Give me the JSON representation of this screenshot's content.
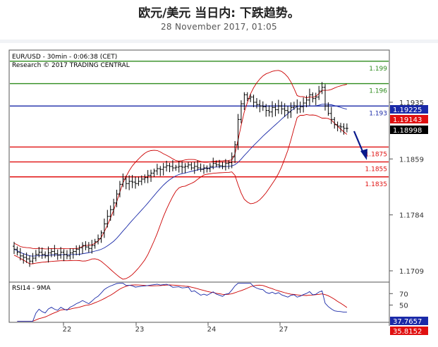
{
  "header": {
    "title": "欧元/美元 当日内: 下跌趋势。",
    "date": "28 November 2017, 01:05"
  },
  "chart_info": {
    "symbol_line": "EUR/USD - 30min - 0:06:38 (CET)",
    "research_line": "Research © 2017 TRADING CENTRAL"
  },
  "colors": {
    "green_level": "#2e8b1e",
    "blue_level": "#1a2aa8",
    "red_level": "#e01010",
    "candles": "#000000",
    "bollinger": "#cc0000",
    "moving_average": "#1a2aa8",
    "arrow": "#0a1a8c"
  },
  "chart_data": [
    {
      "type": "line",
      "title": "",
      "x_tick_labels": [
        "22",
        "23",
        "24",
        "27"
      ],
      "y_tick_labels": [
        "1.1935",
        "1.1859",
        "1.1784",
        "1.1709"
      ],
      "ylim": [
        1.1655,
        1.2005
      ],
      "levels": [
        {
          "label": "1.199",
          "value": 1.199,
          "color": "green"
        },
        {
          "label": "1.196",
          "value": 1.196,
          "color": "green"
        },
        {
          "label": "1.193",
          "value": 1.193,
          "color": "blue"
        },
        {
          "label": "1.1875",
          "value": 1.1875,
          "color": "red"
        },
        {
          "label": "1.1855",
          "value": 1.1855,
          "color": "red"
        },
        {
          "label": "1.1835",
          "value": 1.1835,
          "color": "red"
        }
      ],
      "price_boxes": [
        {
          "label": "1.19225",
          "value": 1.19225,
          "bg": "#1a2aa8"
        },
        {
          "label": "1.19143",
          "value": 1.19143,
          "bg": "#e01010"
        },
        {
          "label": "1.18998",
          "value": 1.18998,
          "bg": "#000000"
        }
      ],
      "series": [
        {
          "price_close": [
            1.1738,
            1.1734,
            1.1729,
            1.1727,
            1.1725,
            1.1722,
            1.1726,
            1.1731,
            1.1734,
            1.1731,
            1.1729,
            1.1733,
            1.1735,
            1.1732,
            1.173,
            1.1734,
            1.1731,
            1.1729,
            1.1733,
            1.1735,
            1.1738,
            1.174,
            1.1743,
            1.1741,
            1.1739,
            1.1743,
            1.1748,
            1.1752,
            1.176,
            1.1772,
            1.1782,
            1.1791,
            1.18,
            1.1812,
            1.1825,
            1.1832,
            1.1826,
            1.1829,
            1.1828,
            1.1826,
            1.1829,
            1.1832,
            1.1834,
            1.1837,
            1.184,
            1.1843,
            1.1846,
            1.1845,
            1.1848,
            1.185,
            1.1849,
            1.1847,
            1.1848,
            1.1849,
            1.1848,
            1.1849,
            1.1851,
            1.1847,
            1.1849,
            1.1847,
            1.1845,
            1.1847,
            1.1846,
            1.1849,
            1.1853,
            1.1851,
            1.185,
            1.1849,
            1.1853,
            1.1854,
            1.1862,
            1.1878,
            1.1912,
            1.1933,
            1.1945,
            1.194,
            1.1942,
            1.1935,
            1.1932,
            1.193,
            1.1929,
            1.1924,
            1.1922,
            1.1928,
            1.1925,
            1.193,
            1.1926,
            1.1924,
            1.1922,
            1.1928,
            1.193,
            1.1926,
            1.1929,
            1.1934,
            1.1938,
            1.1945,
            1.194,
            1.1942,
            1.195,
            1.1955,
            1.193,
            1.192,
            1.1912,
            1.1905,
            1.1903,
            1.1902,
            1.19,
            1.19
          ]
        },
        {
          "name": "",
          "role": "moving-average"
        },
        {
          "name": "",
          "role": "bollinger-bands"
        }
      ]
    },
    {
      "type": "line",
      "title": "RSI14 - 9MA",
      "y_tick_labels": [
        "70",
        "50"
      ],
      "ylim": [
        20,
        90
      ],
      "value_boxes": [
        {
          "label": "37.7657",
          "value": 37.7657,
          "bg": "#1a2aa8"
        },
        {
          "label": "35.8152",
          "value": 35.8152,
          "bg": "#e01010"
        }
      ],
      "series": [
        {
          "name": "",
          "role": "rsi"
        },
        {
          "name": "",
          "role": "rsi-ma"
        }
      ]
    }
  ]
}
